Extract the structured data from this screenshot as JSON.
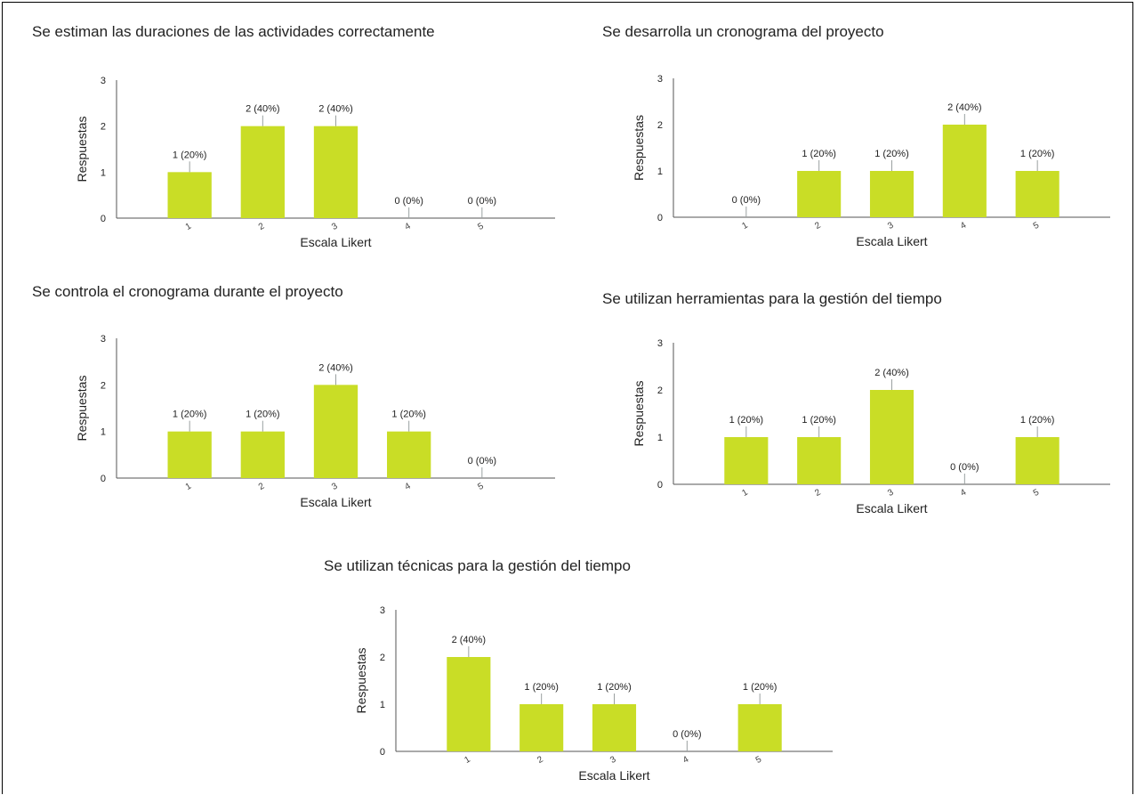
{
  "page": {
    "title": ""
  },
  "style": {
    "bar_color": "#c9dd26",
    "axis_color": "#555555",
    "text_color": "#222222",
    "background": "#ffffff"
  },
  "chart_data": [
    {
      "type": "bar",
      "title": "Se estiman las duraciones de las actividades correctamente",
      "xlabel": "Escala Likert",
      "ylabel": "Respuestas",
      "categories": [
        "1",
        "2",
        "3",
        "4",
        "5"
      ],
      "values": [
        1,
        2,
        2,
        0,
        0
      ],
      "data_labels": [
        "1 (20%)",
        "2 (40%)",
        "2 (40%)",
        "0 (0%)",
        "0 (0%)"
      ],
      "yticks": [
        "0",
        "1",
        "2",
        "3"
      ],
      "ylim": [
        0,
        3
      ],
      "grid": false,
      "legend": "none"
    },
    {
      "type": "bar",
      "title": "Se desarrolla un cronograma del proyecto",
      "xlabel": "Escala Likert",
      "ylabel": "Respuestas",
      "categories": [
        "1",
        "2",
        "3",
        "4",
        "5"
      ],
      "values": [
        0,
        1,
        1,
        2,
        1
      ],
      "data_labels": [
        "0 (0%)",
        "1 (20%)",
        "1 (20%)",
        "2 (40%)",
        "1 (20%)"
      ],
      "yticks": [
        "0",
        "1",
        "2",
        "3"
      ],
      "ylim": [
        0,
        3
      ],
      "grid": false,
      "legend": "none"
    },
    {
      "type": "bar",
      "title": "Se controla el cronograma durante el proyecto",
      "xlabel": "Escala Likert",
      "ylabel": "Respuestas",
      "categories": [
        "1",
        "2",
        "3",
        "4",
        "5"
      ],
      "values": [
        1,
        1,
        2,
        1,
        0
      ],
      "data_labels": [
        "1 (20%)",
        "1 (20%)",
        "2 (40%)",
        "1 (20%)",
        "0 (0%)"
      ],
      "yticks": [
        "0",
        "1",
        "2",
        "3"
      ],
      "ylim": [
        0,
        3
      ],
      "grid": false,
      "legend": "none"
    },
    {
      "type": "bar",
      "title": "Se utilizan herramientas para la gestión del tiempo",
      "xlabel": "Escala Likert",
      "ylabel": "Respuestas",
      "categories": [
        "1",
        "2",
        "3",
        "4",
        "5"
      ],
      "values": [
        1,
        1,
        2,
        0,
        1
      ],
      "data_labels": [
        "1 (20%)",
        "1 (20%)",
        "2 (40%)",
        "0 (0%)",
        "1 (20%)"
      ],
      "yticks": [
        "0",
        "1",
        "2",
        "3"
      ],
      "ylim": [
        0,
        3
      ],
      "grid": false,
      "legend": "none"
    },
    {
      "type": "bar",
      "title": "Se utilizan técnicas para la gestión del tiempo",
      "xlabel": "Escala Likert",
      "ylabel": "Respuestas",
      "categories": [
        "1",
        "2",
        "3",
        "4",
        "5"
      ],
      "values": [
        2,
        1,
        1,
        0,
        1
      ],
      "data_labels": [
        "2 (40%)",
        "1 (20%)",
        "1 (20%)",
        "0 (0%)",
        "1 (20%)"
      ],
      "yticks": [
        "0",
        "1",
        "2",
        "3"
      ],
      "ylim": [
        0,
        3
      ],
      "grid": false,
      "legend": "none"
    }
  ]
}
